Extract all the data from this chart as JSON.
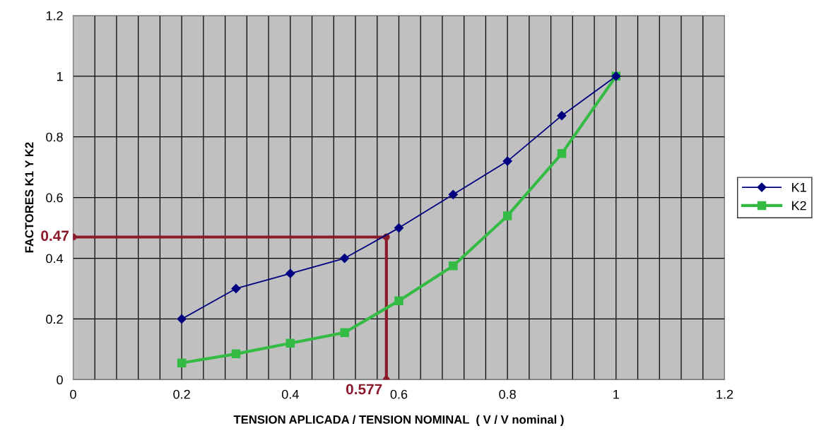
{
  "chart_data": {
    "type": "line",
    "xlabel": "TENSION APLICADA / TENSION NOMINAL  ( V / V nominal )",
    "ylabel": "FACTORES K1 Y K2",
    "xlim": [
      0,
      1.2
    ],
    "ylim": [
      0,
      1.2
    ],
    "xticks": [
      0,
      {
        "value": 0.04,
        "label": null
      },
      {
        "value": 0.08,
        "label": null
      },
      {
        "value": 0.12,
        "label": null
      },
      {
        "value": 0.16,
        "label": null
      },
      0.2,
      {
        "value": 0.24,
        "label": null
      },
      {
        "value": 0.28,
        "label": null
      },
      {
        "value": 0.32,
        "label": null
      },
      {
        "value": 0.36,
        "label": null
      },
      0.4,
      {
        "value": 0.44,
        "label": null
      },
      {
        "value": 0.48,
        "label": null
      },
      {
        "value": 0.52,
        "label": null
      },
      {
        "value": 0.56,
        "label": null
      },
      0.6,
      {
        "value": 0.64,
        "label": null
      },
      {
        "value": 0.68,
        "label": null
      },
      {
        "value": 0.72,
        "label": null
      },
      {
        "value": 0.76,
        "label": null
      },
      0.8,
      {
        "value": 0.84,
        "label": null
      },
      {
        "value": 0.88,
        "label": null
      },
      {
        "value": 0.92,
        "label": null
      },
      {
        "value": 0.96,
        "label": null
      },
      1,
      {
        "value": 1.04,
        "label": null
      },
      {
        "value": 1.08,
        "label": null
      },
      {
        "value": 1.12,
        "label": null
      },
      {
        "value": 1.16,
        "label": null
      },
      1.2
    ],
    "yticks": [
      0,
      0.2,
      0.4,
      0.6,
      0.8,
      1,
      1.2
    ],
    "grid": true,
    "legend": "right",
    "series": [
      {
        "name": "K1",
        "color": "#000080",
        "marker": "diamond",
        "x": [
          0.2,
          0.3,
          0.4,
          0.5,
          0.6,
          0.7,
          0.8,
          0.9,
          1
        ],
        "values": [
          0.2,
          0.3,
          0.35,
          0.4,
          0.5,
          0.61,
          0.72,
          0.87,
          1
        ]
      },
      {
        "name": "K2",
        "color": "#33bb44",
        "marker": "square",
        "x": [
          0.2,
          0.3,
          0.4,
          0.5,
          0.6,
          0.7,
          0.8,
          0.9,
          1
        ],
        "values": [
          0.055,
          0.085,
          0.12,
          0.155,
          0.26,
          0.375,
          0.54,
          0.745,
          1
        ]
      },
      {
        "color": "#8b1a2b",
        "marker": "circle",
        "x": [
          0,
          0.577,
          0.577
        ],
        "values": [
          0.47,
          0.47,
          0
        ]
      }
    ],
    "annotations": [
      {
        "text": "0.47",
        "x": 0,
        "y": 0.47
      },
      {
        "text": "0.577",
        "x": 0.577,
        "y": 0
      }
    ]
  }
}
